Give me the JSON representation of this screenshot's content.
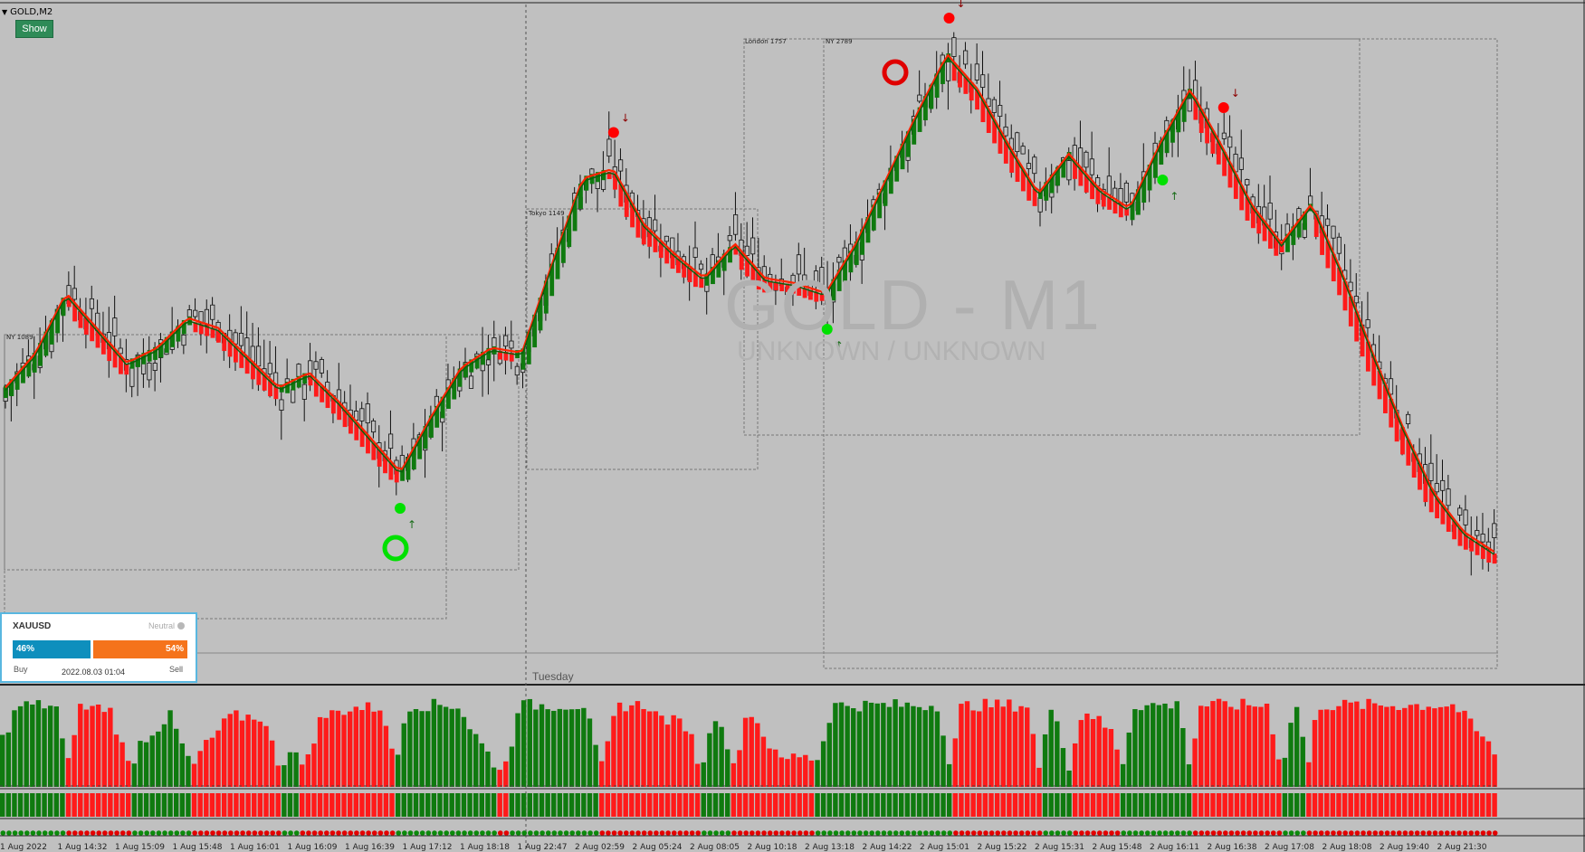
{
  "window": {
    "symbol_title": "GOLD,M2",
    "show_button": "Show",
    "watermark_title": "GOLD - M1",
    "watermark_subtitle": "UNKNOWN / UNKNOWN",
    "day_label": "Tuesday"
  },
  "colors": {
    "background": "#c0c0c0",
    "bull": "#0f7a0f",
    "bear": "#ff1a1a",
    "ma_line": "#ff2200",
    "widget_buy": "#0e8fbd",
    "widget_sell": "#f5731b"
  },
  "sessions": [
    {
      "label": "NY 1089"
    },
    {
      "label": "Tokyo 1149"
    },
    {
      "label": "London 1757"
    },
    {
      "label": "NY 2789"
    }
  ],
  "sentiment_widget": {
    "symbol": "XAUUSD",
    "status": "Neutral",
    "buy_pct": "46%",
    "sell_pct": "54%",
    "buy_label": "Buy",
    "sell_label": "Sell",
    "datetime": "2022.08.03 01:04",
    "buy_fraction": 0.46
  },
  "time_axis": [
    "1 Aug 2022",
    "1 Aug 14:32",
    "1 Aug 15:09",
    "1 Aug 15:48",
    "1 Aug 16:01",
    "1 Aug 16:09",
    "1 Aug 16:39",
    "1 Aug 17:12",
    "1 Aug 18:18",
    "1 Aug 22:47",
    "2 Aug 02:59",
    "2 Aug 05:24",
    "2 Aug 08:05",
    "2 Aug 10:18",
    "2 Aug 13:18",
    "2 Aug 14:22",
    "2 Aug 15:01",
    "2 Aug 15:22",
    "2 Aug 15:31",
    "2 Aug 15:48",
    "2 Aug 16:11",
    "2 Aug 16:38",
    "2 Aug 17:08",
    "2 Aug 18:08",
    "2 Aug 19:40",
    "2 Aug 21:30"
  ],
  "chart_data": {
    "type": "candlestick",
    "symbol": "GOLD,M2",
    "price_trend": [
      0.33,
      0.4,
      0.52,
      0.45,
      0.38,
      0.41,
      0.47,
      0.45,
      0.39,
      0.33,
      0.36,
      0.3,
      0.23,
      0.16,
      0.27,
      0.37,
      0.41,
      0.4,
      0.58,
      0.75,
      0.77,
      0.66,
      0.6,
      0.55,
      0.62,
      0.55,
      0.54,
      0.52,
      0.62,
      0.75,
      0.88,
      1.0,
      0.93,
      0.82,
      0.72,
      0.8,
      0.73,
      0.69,
      0.82,
      0.93,
      0.82,
      0.7,
      0.62,
      0.7,
      0.56,
      0.4,
      0.25,
      0.12,
      0.04,
      0.0
    ],
    "signals": [
      {
        "type": "buy",
        "index": 13
      },
      {
        "type": "sell",
        "index": 20
      },
      {
        "type": "buy",
        "index": 27
      },
      {
        "type": "sell",
        "index": 31
      },
      {
        "type": "buy",
        "index": 38
      },
      {
        "type": "sell",
        "index": 40
      }
    ],
    "histogram": {
      "type": "bar",
      "colors": [
        "green",
        "red"
      ]
    }
  }
}
